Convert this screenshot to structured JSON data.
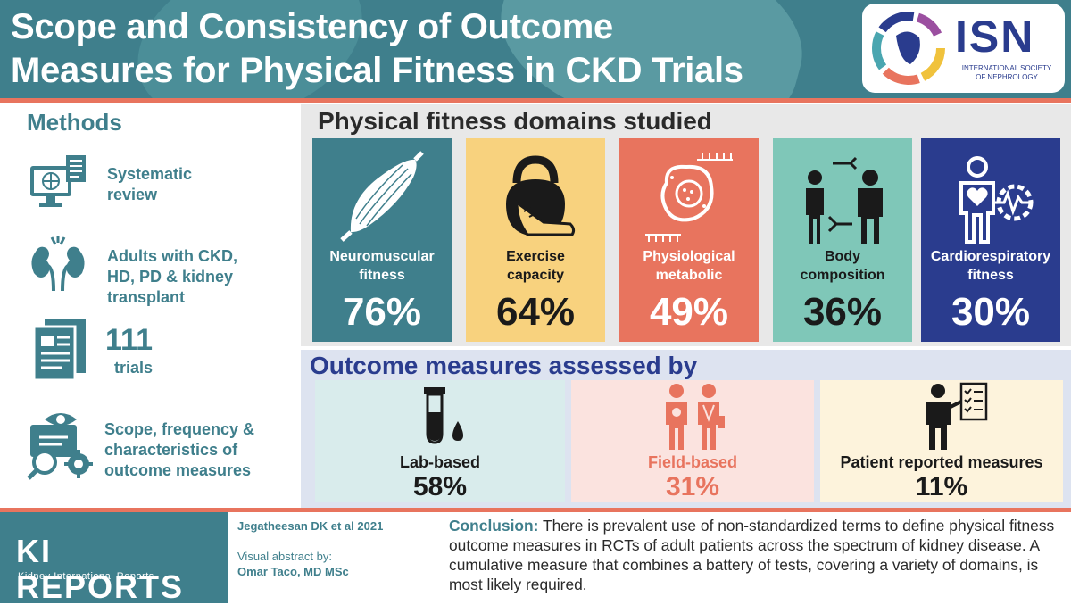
{
  "header": {
    "title_line1": "Scope and Consistency of Outcome",
    "title_line2": "Measures for Physical Fitness in CKD Trials",
    "logo": {
      "name": "ISN",
      "subtitle_line1": "INTERNATIONAL SOCIETY",
      "subtitle_line2": "OF NEPHROLOGY"
    }
  },
  "methods": {
    "title": "Methods",
    "items": [
      {
        "icon": "computer-document-icon",
        "text_lines": [
          "Systematic",
          "review"
        ]
      },
      {
        "icon": "kidney-icon",
        "text_lines": [
          "Adults with CKD,",
          "HD, PD & kidney",
          "transplant"
        ]
      },
      {
        "icon": "document-icon",
        "number": "111",
        "label": "trials"
      },
      {
        "icon": "eye-gear-search-icon",
        "text_lines": [
          "Scope, frequency &",
          "characteristics of",
          "outcome measures"
        ]
      }
    ]
  },
  "domains": {
    "title": "Physical fitness domains studied",
    "items": [
      {
        "name_line1": "Neuromuscular",
        "name_line2": "fitness",
        "percent": "76%",
        "value": 76,
        "icon": "muscle-icon",
        "bg": "#3f7f8c",
        "color": "#ffffff"
      },
      {
        "name_line1": "Exercise",
        "name_line2": "capacity",
        "percent": "64%",
        "value": 64,
        "icon": "kettlebell-shoe-icon",
        "bg": "#f8d27e",
        "color": "#1a1a1a"
      },
      {
        "name_line1": "Physiological",
        "name_line2": "metabolic",
        "percent": "49%",
        "value": 49,
        "icon": "cell-icon",
        "bg": "#e8745e",
        "color": "#ffffff"
      },
      {
        "name_line1": "Body",
        "name_line2": "composition",
        "percent": "36%",
        "value": 36,
        "icon": "body-measure-icon",
        "bg": "#7fc7b8",
        "color": "#1a1a1a"
      },
      {
        "name_line1": "Cardiorespiratory",
        "name_line2": "fitness",
        "percent": "30%",
        "value": 30,
        "icon": "heart-person-icon",
        "bg": "#2a3c8e",
        "color": "#ffffff"
      }
    ]
  },
  "outcomes": {
    "title": "Outcome measures assessed by",
    "items": [
      {
        "label": "Lab-based",
        "percent": "58%",
        "value": 58,
        "icon": "test-tube-icon",
        "bg": "#d9ecec",
        "color": "#1a1a1a"
      },
      {
        "label": "Field-based",
        "percent": "31%",
        "value": 31,
        "icon": "people-icon",
        "bg": "#fbe3df",
        "color": "#e8745e"
      },
      {
        "label": "Patient reported measures",
        "percent": "11%",
        "value": 11,
        "icon": "person-checklist-icon",
        "bg": "#fdf3dc",
        "color": "#1a1a1a"
      }
    ]
  },
  "footer": {
    "journal": "KI REPORTS",
    "journal_sub": "Kidney International Reports",
    "citation": "Jegatheesan DK et al 2021",
    "visual_abstract_label": "Visual abstract by:",
    "author": "Omar Taco, MD MSc",
    "conclusion_lead": "Conclusion:",
    "conclusion_text": " There is prevalent use of non-standardized terms to define physical fitness outcome measures in RCTs of adult patients across the spectrum of kidney disease. A cumulative measure that combines a battery of tests, covering a variety of domains, is most likely required."
  }
}
